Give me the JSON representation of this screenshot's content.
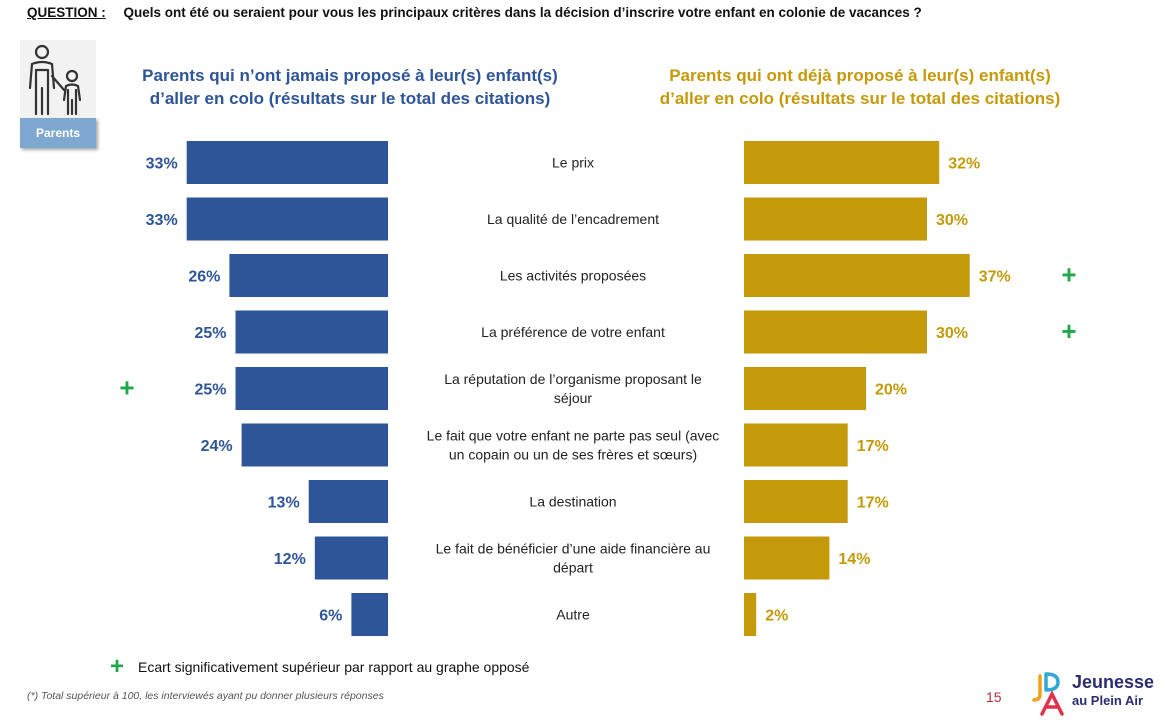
{
  "question": {
    "tag": "QUESTION :",
    "text": "Quels ont été ou seraient pour vous les principaux critères dans la décision d’inscrire votre enfant en colonie de vacances ?"
  },
  "badge": {
    "label": "Parents"
  },
  "headers": {
    "left_line1": "Parents qui n’ont jamais proposé à leur(s) enfant(s)",
    "left_line2": "d’aller en colo (résultats sur le total des citations)",
    "right_line1": "Parents qui ont déjà proposé à leur(s) enfant(s)",
    "right_line2": "d’aller en colo (résultats sur le total des citations)"
  },
  "colors": {
    "left": "#2e5597",
    "right": "#c49a0a",
    "plus": "#1fa84a"
  },
  "chart_data": {
    "type": "bar",
    "orientation": "horizontal-butterfly",
    "categories": [
      [
        "Le prix"
      ],
      [
        "La qualité de l’encadrement"
      ],
      [
        "Les activités proposées"
      ],
      [
        "La préférence de votre enfant"
      ],
      [
        "La réputation de l’organisme proposant le",
        "séjour"
      ],
      [
        "Le fait que votre enfant ne parte pas seul (avec",
        "un copain ou un de ses frères et sœurs)"
      ],
      [
        "La destination"
      ],
      [
        "Le fait de bénéficier d’une aide financière au",
        "départ"
      ],
      [
        "Autre"
      ]
    ],
    "series": [
      {
        "name": "Parents qui n’ont jamais proposé à leur(s) enfant(s) d’aller en colo",
        "values": [
          33,
          33,
          26,
          25,
          25,
          24,
          13,
          12,
          6
        ],
        "labels": [
          "33%",
          "33%",
          "26%",
          "25%",
          "25%",
          "24%",
          "13%",
          "12%",
          "6%"
        ],
        "significant": [
          false,
          false,
          false,
          false,
          true,
          false,
          false,
          false,
          false
        ]
      },
      {
        "name": "Parents qui ont déjà proposé à leur(s) enfant(s) d’aller en colo",
        "values": [
          32,
          30,
          37,
          30,
          20,
          17,
          17,
          14,
          2
        ],
        "labels": [
          "32%",
          "30%",
          "37%",
          "30%",
          "20%",
          "17%",
          "17%",
          "14%",
          "2%"
        ],
        "significant": [
          false,
          false,
          true,
          true,
          false,
          false,
          false,
          false,
          false
        ]
      }
    ],
    "plus_symbol": "+"
  },
  "legend": {
    "symbol": "+",
    "text": "Ecart significativement supérieur par rapport au graphe opposé"
  },
  "footnote": "(*) Total supérieur à 100, les interviewés ayant pu donner plusieurs réponses",
  "page_number": "15",
  "logo": {
    "line1": "Jeunesse",
    "line2": "au Plein Air"
  }
}
